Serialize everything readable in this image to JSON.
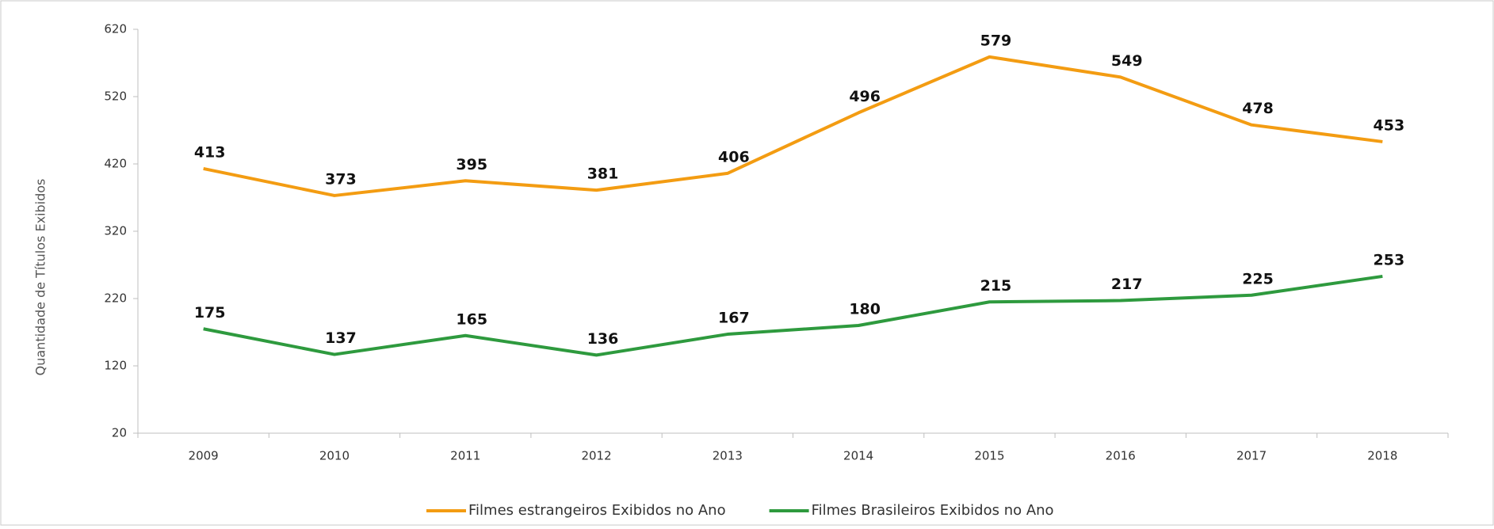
{
  "chart_data": {
    "type": "line",
    "y_label": "Quantidade de Títulos Exibidos",
    "categories": [
      "2009",
      "2010",
      "2011",
      "2012",
      "2013",
      "2014",
      "2015",
      "2016",
      "2017",
      "2018"
    ],
    "series": [
      {
        "name": "Filmes estrangeiros Exibidos no Ano",
        "color": "#f39c12",
        "values": [
          413,
          373,
          395,
          381,
          406,
          496,
          579,
          549,
          478,
          453
        ]
      },
      {
        "name": "Filmes Brasileiros Exibidos no Ano",
        "color": "#2e9a3e",
        "values": [
          175,
          137,
          165,
          136,
          167,
          180,
          215,
          217,
          225,
          253
        ]
      }
    ],
    "ylim": [
      20,
      620
    ],
    "yticks": [
      20,
      120,
      220,
      320,
      420,
      520,
      620
    ],
    "legend": "bottom",
    "grid": false
  }
}
